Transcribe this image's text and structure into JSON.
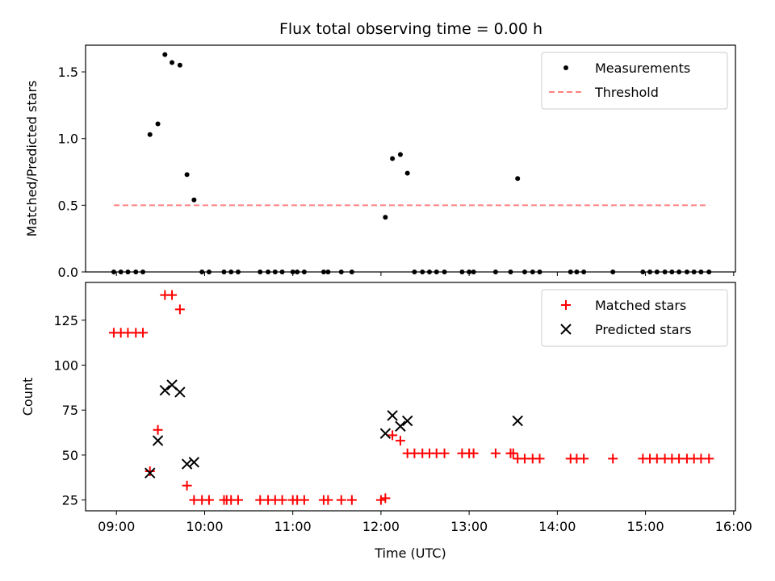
{
  "title": "Flux total observing time = 0.00 h",
  "chart_data": [
    {
      "type": "scatter",
      "ylabel": "Matched/Predicted stars",
      "xlim": [
        8.65,
        16.02
      ],
      "ylim": [
        0,
        1.7
      ],
      "yticks": [
        0.0,
        0.5,
        1.0,
        1.5
      ],
      "ytick_labels": [
        "0.0",
        "0.5",
        "1.0",
        "1.5"
      ],
      "legend": "top-right",
      "series": [
        {
          "name": "Measurements",
          "color": "#000000",
          "marker": "dot",
          "x": [
            8.97,
            9.05,
            9.13,
            9.22,
            9.3,
            9.38,
            9.47,
            9.55,
            9.63,
            9.72,
            9.8,
            9.88,
            9.97,
            10.05,
            10.22,
            10.3,
            10.38,
            10.63,
            10.72,
            10.8,
            10.88,
            11.0,
            11.05,
            11.13,
            11.35,
            11.4,
            11.55,
            11.67,
            12.05,
            12.13,
            12.22,
            12.3,
            12.38,
            12.47,
            12.55,
            12.63,
            12.72,
            12.92,
            13.0,
            13.05,
            13.3,
            13.47,
            13.55,
            13.63,
            13.72,
            13.8,
            14.15,
            14.22,
            14.3,
            14.63,
            14.97,
            15.05,
            15.13,
            15.22,
            15.3,
            15.38,
            15.47,
            15.55,
            15.63,
            15.72
          ],
          "values": [
            0,
            0,
            0,
            0,
            0,
            1.03,
            1.11,
            1.63,
            1.57,
            1.55,
            0.73,
            0.54,
            0,
            0,
            0,
            0,
            0,
            0,
            0,
            0,
            0,
            0,
            0,
            0,
            0,
            0,
            0,
            0,
            0.41,
            0.85,
            0.88,
            0.74,
            0,
            0,
            0,
            0,
            0,
            0,
            0,
            0,
            0,
            0,
            0.7,
            0,
            0,
            0,
            0,
            0,
            0,
            0,
            0,
            0,
            0,
            0,
            0,
            0,
            0,
            0,
            0,
            0
          ]
        },
        {
          "name": "Threshold",
          "color": "#ff8080",
          "marker": "dashed-line",
          "x": [
            8.97,
            15.72
          ],
          "values": [
            0.5,
            0.5
          ]
        }
      ]
    },
    {
      "type": "scatter",
      "xlabel": "Time (UTC)",
      "ylabel": "Count",
      "xlim": [
        8.65,
        16.02
      ],
      "ylim": [
        19,
        146
      ],
      "xticks": [
        9,
        10,
        11,
        12,
        13,
        14,
        15,
        16
      ],
      "xtick_labels": [
        "09:00",
        "10:00",
        "11:00",
        "12:00",
        "13:00",
        "14:00",
        "15:00",
        "16:00"
      ],
      "yticks": [
        25,
        50,
        75,
        100,
        125
      ],
      "ytick_labels": [
        "25",
        "50",
        "75",
        "100",
        "125"
      ],
      "legend": "top-right",
      "series": [
        {
          "name": "Matched stars",
          "color": "#ff0000",
          "marker": "plus",
          "x": [
            8.97,
            9.05,
            9.13,
            9.22,
            9.3,
            9.38,
            9.47,
            9.55,
            9.63,
            9.72,
            9.8,
            9.88,
            9.97,
            10.05,
            10.22,
            10.25,
            10.3,
            10.38,
            10.63,
            10.72,
            10.8,
            10.88,
            11.0,
            11.05,
            11.13,
            11.35,
            11.4,
            11.55,
            11.67,
            12.0,
            12.05,
            12.13,
            12.22,
            12.3,
            12.38,
            12.47,
            12.55,
            12.63,
            12.72,
            12.92,
            13.0,
            13.05,
            13.3,
            13.47,
            13.5,
            13.55,
            13.63,
            13.72,
            13.8,
            14.15,
            14.22,
            14.3,
            14.63,
            14.97,
            15.05,
            15.13,
            15.22,
            15.3,
            15.38,
            15.47,
            15.55,
            15.63,
            15.72
          ],
          "values": [
            118,
            118,
            118,
            118,
            118,
            41,
            64,
            139,
            139,
            131,
            33,
            25,
            25,
            25,
            25,
            25,
            25,
            25,
            25,
            25,
            25,
            25,
            25,
            25,
            25,
            25,
            25,
            25,
            25,
            25,
            26,
            61,
            58,
            51,
            51,
            51,
            51,
            51,
            51,
            51,
            51,
            51,
            51,
            51,
            51,
            48,
            48,
            48,
            48,
            48,
            48,
            48,
            48,
            48,
            48,
            48,
            48,
            48,
            48,
            48,
            48,
            48,
            48
          ]
        },
        {
          "name": "Predicted stars",
          "color": "#000000",
          "marker": "x",
          "x": [
            9.38,
            9.47,
            9.55,
            9.63,
            9.72,
            9.8,
            9.88,
            12.05,
            12.13,
            12.22,
            12.3,
            13.55
          ],
          "values": [
            40,
            58,
            86,
            89,
            85,
            45,
            46,
            62,
            72,
            66,
            69,
            69
          ]
        }
      ]
    }
  ]
}
